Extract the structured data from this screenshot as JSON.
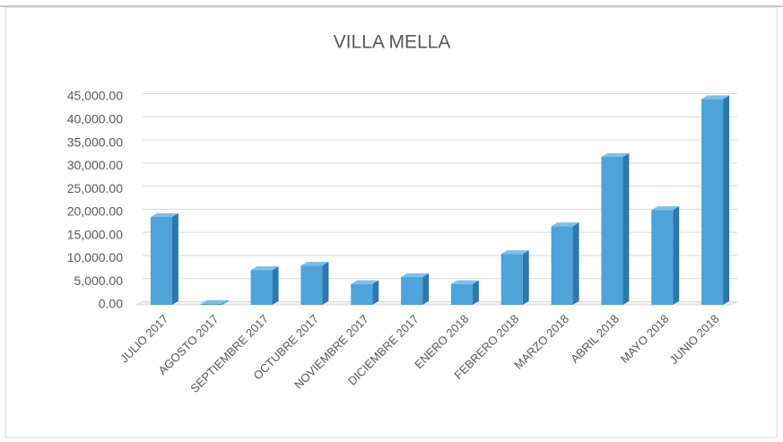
{
  "chart_data": {
    "type": "bar",
    "title": "VILLA MELLA",
    "categories": [
      "JULIO 2017",
      "AGOSTO 2017",
      "SEPTIEMBRE 2017",
      "OCTUBRE 2017",
      "NOVIEMBRE 2017",
      "DICIEMBRE 2017",
      "ENERO 2018",
      "FEBRERO 2018",
      "MARZO 2018",
      "ABRIL 2018",
      "MAYO 2018",
      "JUNIO 2018"
    ],
    "values": [
      19000,
      200,
      7500,
      8500,
      4500,
      6000,
      4500,
      11000,
      17000,
      32000,
      20500,
      44500
    ],
    "color": "#4ea3db",
    "ylim": [
      0,
      45000
    ],
    "yticks": [
      {
        "value": 0,
        "label": "0.00"
      },
      {
        "value": 5000,
        "label": "5,000.00"
      },
      {
        "value": 10000,
        "label": "10,000.00"
      },
      {
        "value": 15000,
        "label": "15,000.00"
      },
      {
        "value": 20000,
        "label": "20,000.00"
      },
      {
        "value": 25000,
        "label": "25,000.00"
      },
      {
        "value": 30000,
        "label": "30,000.00"
      },
      {
        "value": 35000,
        "label": "35,000.00"
      },
      {
        "value": 40000,
        "label": "40,000.00"
      },
      {
        "value": 45000,
        "label": "45,000.00"
      }
    ],
    "grid": true
  }
}
